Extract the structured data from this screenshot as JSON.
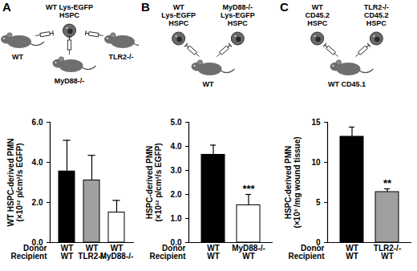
{
  "chart_data": [
    {
      "type": "bar",
      "title": "A",
      "donor_labels": [
        "WT Lys-EGFP\nHSPC"
      ],
      "recipient_labels": [
        "WT",
        "MyD88-/-",
        "TLR2-/-"
      ],
      "ylabel": "WT HSPC-derived PMN\n(×10¹² p/cm²/s EGFP)",
      "categories": [
        "WT\nWT",
        "WT\nTLR2-/-",
        "WT\nMyD88-/-"
      ],
      "row_labels": [
        "Donor",
        "Recipient"
      ],
      "values": [
        3.55,
        3.1,
        1.5
      ],
      "errors": [
        1.55,
        1.25,
        0.6
      ],
      "significance": [
        null,
        null,
        null
      ],
      "colors": [
        "#000000",
        "#a0a0a0",
        "#ffffff"
      ],
      "ylim": [
        0,
        6
      ],
      "yticks": [
        0,
        2,
        4,
        6
      ]
    },
    {
      "type": "bar",
      "title": "B",
      "donor_labels": [
        "WT\nLys-EGFP\nHSPC",
        "MyD88-/-\nLys-EGFP\nHSPC"
      ],
      "recipient_labels": [
        "WT"
      ],
      "ylabel": "HSPC-derived PMN\n(×10¹² p/cm²/s EGFP)",
      "categories": [
        "WT\nWT",
        "MyD88-/-\nWT"
      ],
      "row_labels": [
        "Donor",
        "Recipient"
      ],
      "values": [
        3.65,
        1.55
      ],
      "errors": [
        0.4,
        0.45
      ],
      "significance": [
        null,
        "***"
      ],
      "colors": [
        "#000000",
        "#ffffff"
      ],
      "ylim": [
        0,
        5
      ],
      "yticks": [
        0,
        1,
        2,
        3,
        4,
        5
      ]
    },
    {
      "type": "bar",
      "title": "C",
      "donor_labels": [
        "WT\nCD45.2\nHSPC",
        "TLR2-/-\nCD45.2\nHSPC"
      ],
      "recipient_labels": [
        "WT CD45.1"
      ],
      "ylabel": "HSPC-derived PMN\n(×10³ /mg wound tissue)",
      "categories": [
        "WT\nWT",
        "TLR2-/-\nWT"
      ],
      "row_labels": [
        "Donor",
        "Recipient"
      ],
      "values": [
        13.2,
        6.3
      ],
      "errors": [
        1.2,
        0.4
      ],
      "significance": [
        null,
        "**"
      ],
      "colors": [
        "#000000",
        "#a0a0a0"
      ],
      "ylim": [
        0,
        15
      ],
      "yticks": [
        0,
        5,
        10,
        15
      ]
    }
  ]
}
